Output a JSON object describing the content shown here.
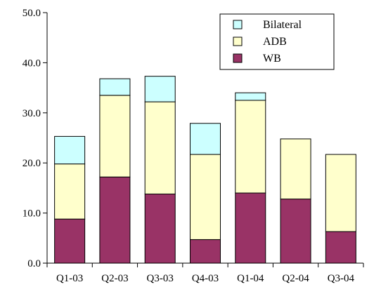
{
  "chart_data": {
    "type": "bar",
    "stacked": true,
    "categories": [
      "Q1-03",
      "Q2-03",
      "Q3-03",
      "Q4-03",
      "Q1-04",
      "Q2-04",
      "Q3-04"
    ],
    "series": [
      {
        "name": "WB",
        "color": "#993366",
        "values": [
          8.8,
          17.2,
          13.8,
          4.7,
          14.0,
          12.8,
          6.3
        ]
      },
      {
        "name": "ADB",
        "color": "#FFFFCC",
        "values": [
          11.0,
          16.3,
          18.4,
          17.0,
          18.5,
          12.0,
          15.4
        ]
      },
      {
        "name": "Bilateral",
        "color": "#CCFFFF",
        "values": [
          5.5,
          3.3,
          5.1,
          6.2,
          1.5,
          0.0,
          0.0
        ]
      }
    ],
    "yticks": [
      "0.0",
      "10.0",
      "20.0",
      "30.0",
      "40.0",
      "50.0"
    ],
    "ylim": [
      0,
      50
    ],
    "legend": {
      "placement": "top-right",
      "order": [
        "Bilateral",
        "ADB",
        "WB"
      ]
    },
    "grid": false,
    "title": "",
    "xlabel": "",
    "ylabel": ""
  }
}
